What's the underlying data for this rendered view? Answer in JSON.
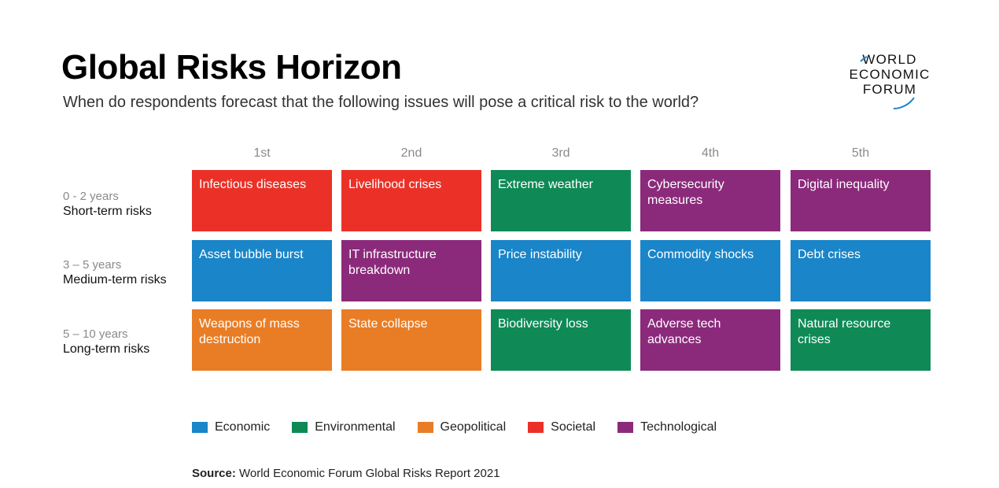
{
  "title": "Global Risks Horizon",
  "subtitle": "When do respondents forecast that the following issues will pose a critical risk to the world?",
  "logo": {
    "lines": [
      "WORLD",
      "ECONOMIC",
      "FORUM"
    ]
  },
  "colors": {
    "Economic": "#1a85c8",
    "Environmental": "#0f8a57",
    "Geopolitical": "#e97d26",
    "Societal": "#eb3127",
    "Technological": "#8b2a7b"
  },
  "chart_data": {
    "type": "table",
    "columns": [
      "1st",
      "2nd",
      "3rd",
      "4th",
      "5th"
    ],
    "rows": [
      {
        "years": "0 - 2 years",
        "term": "Short-term risks",
        "cells": [
          {
            "label": "Infectious diseases",
            "category": "Societal"
          },
          {
            "label": "Livelihood crises",
            "category": "Societal"
          },
          {
            "label": "Extreme weather",
            "category": "Environmental"
          },
          {
            "label": "Cybersecurity measures",
            "category": "Technological"
          },
          {
            "label": "Digital inequality",
            "category": "Technological"
          }
        ]
      },
      {
        "years": "3 – 5 years",
        "term": "Medium-term risks",
        "cells": [
          {
            "label": "Asset bubble burst",
            "category": "Economic"
          },
          {
            "label": "IT infrastructure breakdown",
            "category": "Technological"
          },
          {
            "label": "Price instability",
            "category": "Economic"
          },
          {
            "label": "Commodity shocks",
            "category": "Economic"
          },
          {
            "label": "Debt crises",
            "category": "Economic"
          }
        ]
      },
      {
        "years": "5 – 10 years",
        "term": "Long-term risks",
        "cells": [
          {
            "label": "Weapons of mass destruction",
            "category": "Geopolitical"
          },
          {
            "label": "State collapse",
            "category": "Geopolitical"
          },
          {
            "label": "Biodiversity loss",
            "category": "Environmental"
          },
          {
            "label": "Adverse tech advances",
            "category": "Technological"
          },
          {
            "label": "Natural resource crises",
            "category": "Environmental"
          }
        ]
      }
    ],
    "legend": [
      "Economic",
      "Environmental",
      "Geopolitical",
      "Societal",
      "Technological"
    ]
  },
  "source": {
    "label": "Source:",
    "text": "World Economic Forum Global Risks Report 2021"
  }
}
